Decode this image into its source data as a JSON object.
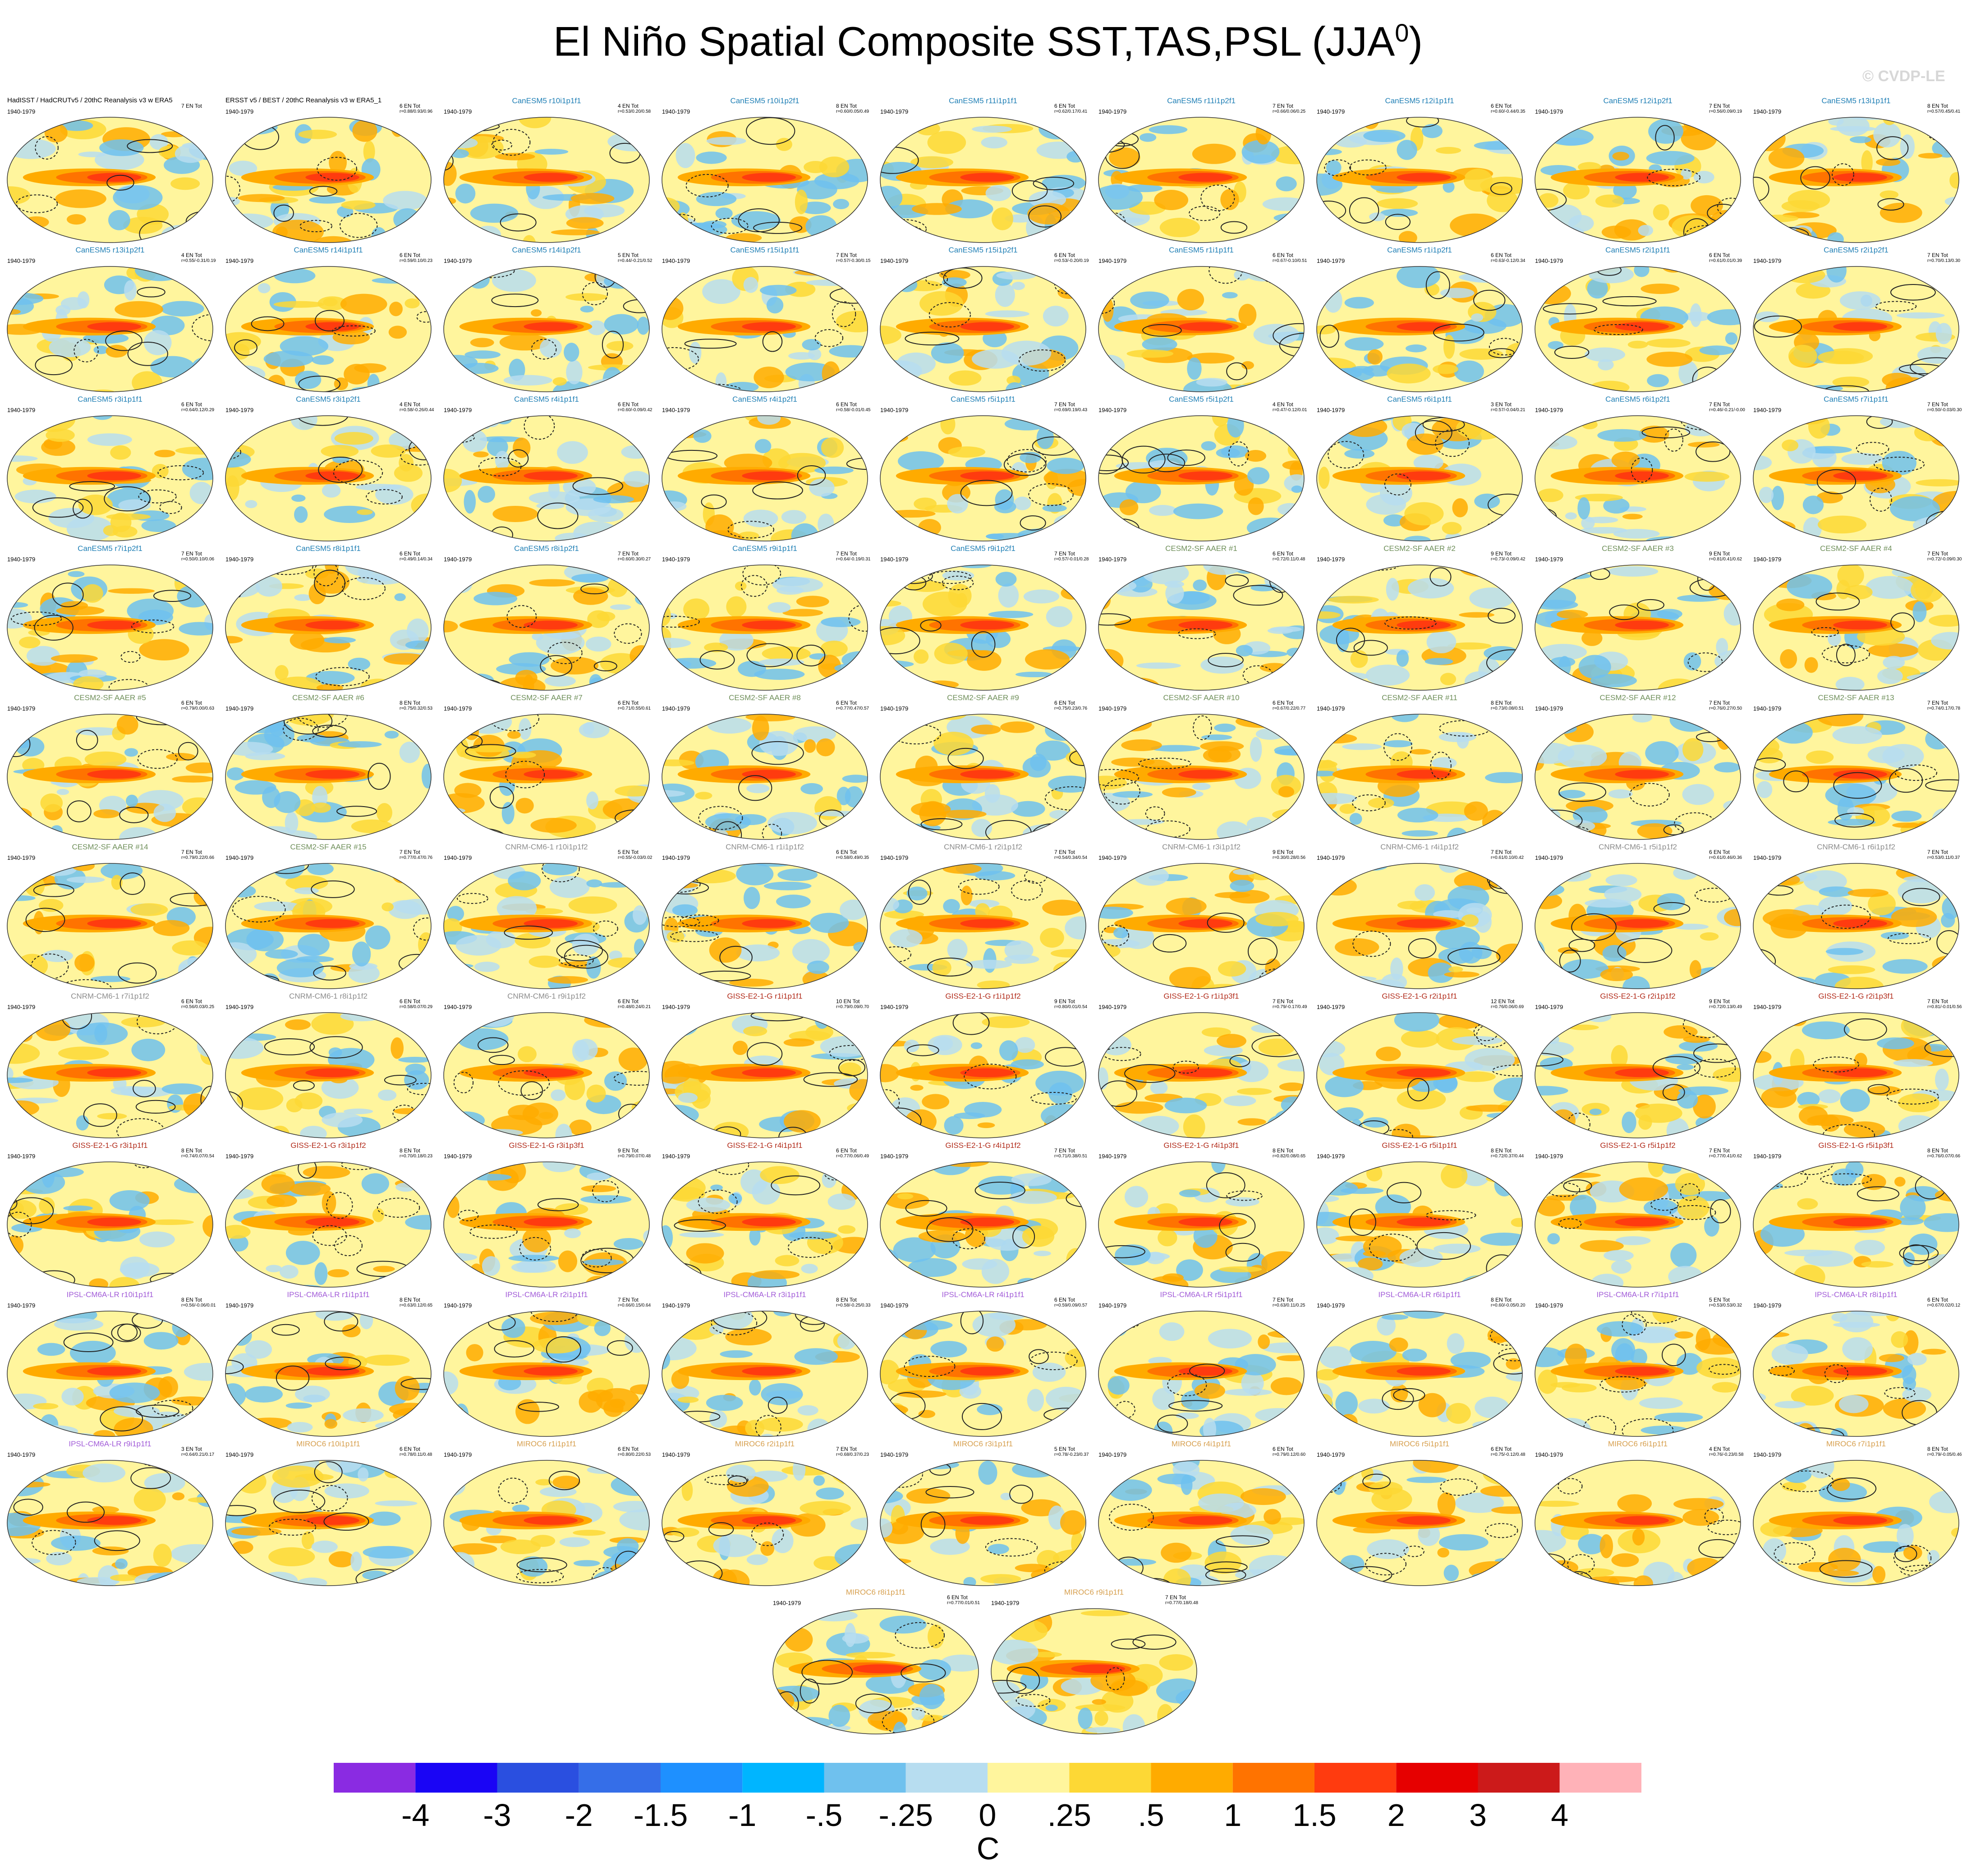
{
  "figure": {
    "title": "El Niño Spatial Composite SST,TAS,PSL (JJA",
    "title_sup": "0",
    "title_close": ")",
    "copyright": "© CVDP-LE",
    "period": "1940-1979"
  },
  "colors": {
    "CanESM5": "#1f7fb5",
    "CESM2": "#6f8f5a",
    "CNRM": "#8c8c8c",
    "GISS": "#b22c1b",
    "IPSL": "#a25cd8",
    "MIROC6": "#d7a04f",
    "Observations": "#000000"
  },
  "panels": [
    {
      "name": "HadISST / HadCRUTv5 / 20thC Reanalysis v3 w ERA5",
      "group": "Observations",
      "count": "7 EN Tot",
      "stats": "",
      "seed": 1
    },
    {
      "name": "ERSST v5 / BEST / 20thC Reanalysis v3 w ERA5_1",
      "group": "Observations",
      "count": "6 EN Tot",
      "stats": "r=0.88/0.93/0.96",
      "seed": 2
    },
    {
      "name": "CanESM5 r10i1p1f1",
      "group": "CanESM5",
      "count": "4 EN Tot",
      "stats": "r=0.53/0.20/0.58",
      "seed": 3
    },
    {
      "name": "CanESM5 r10i1p2f1",
      "group": "CanESM5",
      "count": "8 EN Tot",
      "stats": "r=0.60/0.05/0.49",
      "seed": 4
    },
    {
      "name": "CanESM5 r11i1p1f1",
      "group": "CanESM5",
      "count": "6 EN Tot",
      "stats": "r=0.62/0.17/0.41",
      "seed": 5
    },
    {
      "name": "CanESM5 r11i1p2f1",
      "group": "CanESM5",
      "count": "7 EN Tot",
      "stats": "r=0.66/0.06/0.25",
      "seed": 6
    },
    {
      "name": "CanESM5 r12i1p1f1",
      "group": "CanESM5",
      "count": "6 EN Tot",
      "stats": "r=0.60/-0.44/0.35",
      "seed": 7
    },
    {
      "name": "CanESM5 r12i1p2f1",
      "group": "CanESM5",
      "count": "7 EN Tot",
      "stats": "r=0.56/0.09/0.19",
      "seed": 8
    },
    {
      "name": "CanESM5 r13i1p1f1",
      "group": "CanESM5",
      "count": "8 EN Tot",
      "stats": "r=0.57/0.45/0.41",
      "seed": 9
    },
    {
      "name": "CanESM5 r13i1p2f1",
      "group": "CanESM5",
      "count": "4 EN Tot",
      "stats": "r=0.55/-0.31/0.19",
      "seed": 10
    },
    {
      "name": "CanESM5 r14i1p1f1",
      "group": "CanESM5",
      "count": "6 EN Tot",
      "stats": "r=0.59/0.10/0.23",
      "seed": 11
    },
    {
      "name": "CanESM5 r14i1p2f1",
      "group": "CanESM5",
      "count": "5 EN Tot",
      "stats": "r=0.44/-0.21/0.52",
      "seed": 12
    },
    {
      "name": "CanESM5 r15i1p1f1",
      "group": "CanESM5",
      "count": "7 EN Tot",
      "stats": "r=0.57/-0.30/0.15",
      "seed": 13
    },
    {
      "name": "CanESM5 r15i1p2f1",
      "group": "CanESM5",
      "count": "6 EN Tot",
      "stats": "r=0.53/-0.20/0.19",
      "seed": 14
    },
    {
      "name": "CanESM5 r1i1p1f1",
      "group": "CanESM5",
      "count": "6 EN Tot",
      "stats": "r=0.67/-0.10/0.51",
      "seed": 15
    },
    {
      "name": "CanESM5 r1i1p2f1",
      "group": "CanESM5",
      "count": "6 EN Tot",
      "stats": "r=0.63/-0.12/0.34",
      "seed": 16
    },
    {
      "name": "CanESM5 r2i1p1f1",
      "group": "CanESM5",
      "count": "6 EN Tot",
      "stats": "r=0.61/0.01/0.39",
      "seed": 17
    },
    {
      "name": "CanESM5 r2i1p2f1",
      "group": "CanESM5",
      "count": "7 EN Tot",
      "stats": "r=0.70/0.13/0.30",
      "seed": 18
    },
    {
      "name": "CanESM5 r3i1p1f1",
      "group": "CanESM5",
      "count": "6 EN Tot",
      "stats": "r=0.64/0.12/0.29",
      "seed": 19
    },
    {
      "name": "CanESM5 r3i1p2f1",
      "group": "CanESM5",
      "count": "4 EN Tot",
      "stats": "r=0.58/-0.26/0.44",
      "seed": 20
    },
    {
      "name": "CanESM5 r4i1p1f1",
      "group": "CanESM5",
      "count": "6 EN Tot",
      "stats": "r=0.60/-0.09/0.42",
      "seed": 21
    },
    {
      "name": "CanESM5 r4i1p2f1",
      "group": "CanESM5",
      "count": "6 EN Tot",
      "stats": "r=0.58/-0.01/0.45",
      "seed": 22
    },
    {
      "name": "CanESM5 r5i1p1f1",
      "group": "CanESM5",
      "count": "7 EN Tot",
      "stats": "r=0.69/0.19/0.43",
      "seed": 23
    },
    {
      "name": "CanESM5 r5i1p2f1",
      "group": "CanESM5",
      "count": "4 EN Tot",
      "stats": "r=0.47/-0.12/0.01",
      "seed": 24
    },
    {
      "name": "CanESM5 r6i1p1f1",
      "group": "CanESM5",
      "count": "3 EN Tot",
      "stats": "r=0.57/-0.04/0.21",
      "seed": 25
    },
    {
      "name": "CanESM5 r6i1p2f1",
      "group": "CanESM5",
      "count": "7 EN Tot",
      "stats": "r=0.46/-0.21/-0.00",
      "seed": 26
    },
    {
      "name": "CanESM5 r7i1p1f1",
      "group": "CanESM5",
      "count": "7 EN Tot",
      "stats": "r=0.50/-0.03/0.30",
      "seed": 27
    },
    {
      "name": "CanESM5 r7i1p2f1",
      "group": "CanESM5",
      "count": "7 EN Tot",
      "stats": "r=0.50/0.10/0.06",
      "seed": 28
    },
    {
      "name": "CanESM5 r8i1p1f1",
      "group": "CanESM5",
      "count": "6 EN Tot",
      "stats": "r=0.49/0.14/0.34",
      "seed": 29
    },
    {
      "name": "CanESM5 r8i1p2f1",
      "group": "CanESM5",
      "count": "7 EN Tot",
      "stats": "r=0.60/0.30/0.27",
      "seed": 30
    },
    {
      "name": "CanESM5 r9i1p1f1",
      "group": "CanESM5",
      "count": "7 EN Tot",
      "stats": "r=0.64/-0.19/0.31",
      "seed": 31
    },
    {
      "name": "CanESM5 r9i1p2f1",
      "group": "CanESM5",
      "count": "7 EN Tot",
      "stats": "r=0.57/-0.01/0.28",
      "seed": 32
    },
    {
      "name": "CESM2-SF AAER #1",
      "group": "CESM2",
      "count": "6 EN Tot",
      "stats": "r=0.72/0.11/0.48",
      "seed": 33
    },
    {
      "name": "CESM2-SF AAER #2",
      "group": "CESM2",
      "count": "9 EN Tot",
      "stats": "r=0.73/-0.09/0.42",
      "seed": 34
    },
    {
      "name": "CESM2-SF AAER #3",
      "group": "CESM2",
      "count": "9 EN Tot",
      "stats": "r=0.81/0.41/0.62",
      "seed": 35
    },
    {
      "name": "CESM2-SF AAER #4",
      "group": "CESM2",
      "count": "7 EN Tot",
      "stats": "r=0.72/-0.09/0.30",
      "seed": 36
    },
    {
      "name": "CESM2-SF AAER #5",
      "group": "CESM2",
      "count": "6 EN Tot",
      "stats": "r=0.79/0.00/0.63",
      "seed": 37
    },
    {
      "name": "CESM2-SF AAER #6",
      "group": "CESM2",
      "count": "8 EN Tot",
      "stats": "r=0.75/0.32/0.53",
      "seed": 38
    },
    {
      "name": "CESM2-SF AAER #7",
      "group": "CESM2",
      "count": "6 EN Tot",
      "stats": "r=0.71/0.55/0.61",
      "seed": 39
    },
    {
      "name": "CESM2-SF AAER #8",
      "group": "CESM2",
      "count": "6 EN Tot",
      "stats": "r=0.77/0.47/0.57",
      "seed": 40
    },
    {
      "name": "CESM2-SF AAER #9",
      "group": "CESM2",
      "count": "6 EN Tot",
      "stats": "r=0.75/0.23/0.76",
      "seed": 41
    },
    {
      "name": "CESM2-SF AAER #10",
      "group": "CESM2",
      "count": "6 EN Tot",
      "stats": "r=0.67/0.22/0.77",
      "seed": 42
    },
    {
      "name": "CESM2-SF AAER #11",
      "group": "CESM2",
      "count": "8 EN Tot",
      "stats": "r=0.73/0.08/0.51",
      "seed": 43
    },
    {
      "name": "CESM2-SF AAER #12",
      "group": "CESM2",
      "count": "7 EN Tot",
      "stats": "r=0.76/0.27/0.50",
      "seed": 44
    },
    {
      "name": "CESM2-SF AAER #13",
      "group": "CESM2",
      "count": "7 EN Tot",
      "stats": "r=0.74/0.17/0.78",
      "seed": 45
    },
    {
      "name": "CESM2-SF AAER #14",
      "group": "CESM2",
      "count": "7 EN Tot",
      "stats": "r=0.79/0.22/0.66",
      "seed": 46
    },
    {
      "name": "CESM2-SF AAER #15",
      "group": "CESM2",
      "count": "7 EN Tot",
      "stats": "r=0.77/0.47/0.76",
      "seed": 47
    },
    {
      "name": "CNRM-CM6-1 r10i1p1f2",
      "group": "CNRM",
      "count": "5 EN Tot",
      "stats": "r=0.55/-0.03/0.02",
      "seed": 48
    },
    {
      "name": "CNRM-CM6-1 r1i1p1f2",
      "group": "CNRM",
      "count": "6 EN Tot",
      "stats": "r=0.58/0.49/0.35",
      "seed": 49
    },
    {
      "name": "CNRM-CM6-1 r2i1p1f2",
      "group": "CNRM",
      "count": "7 EN Tot",
      "stats": "r=0.54/0.34/0.54",
      "seed": 50
    },
    {
      "name": "CNRM-CM6-1 r3i1p1f2",
      "group": "CNRM",
      "count": "9 EN Tot",
      "stats": "r=0.30/0.28/0.56",
      "seed": 51
    },
    {
      "name": "CNRM-CM6-1 r4i1p1f2",
      "group": "CNRM",
      "count": "7 EN Tot",
      "stats": "r=0.61/0.10/0.42",
      "seed": 52
    },
    {
      "name": "CNRM-CM6-1 r5i1p1f2",
      "group": "CNRM",
      "count": "6 EN Tot",
      "stats": "r=0.61/0.46/0.36",
      "seed": 53
    },
    {
      "name": "CNRM-CM6-1 r6i1p1f2",
      "group": "CNRM",
      "count": "7 EN Tot",
      "stats": "r=0.53/0.11/0.37",
      "seed": 54
    },
    {
      "name": "CNRM-CM6-1 r7i1p1f2",
      "group": "CNRM",
      "count": "6 EN Tot",
      "stats": "r=0.56/0.03/0.25",
      "seed": 55
    },
    {
      "name": "CNRM-CM6-1 r8i1p1f2",
      "group": "CNRM",
      "count": "6 EN Tot",
      "stats": "r=0.58/0.07/0.29",
      "seed": 56
    },
    {
      "name": "CNRM-CM6-1 r9i1p1f2",
      "group": "CNRM",
      "count": "6 EN Tot",
      "stats": "r=0.48/0.24/0.21",
      "seed": 57
    },
    {
      "name": "GISS-E2-1-G r1i1p1f1",
      "group": "GISS",
      "count": "10 EN Tot",
      "stats": "r=0.79/0.09/0.70",
      "seed": 58
    },
    {
      "name": "GISS-E2-1-G r1i1p1f2",
      "group": "GISS",
      "count": "9 EN Tot",
      "stats": "r=0.80/0.01/0.54",
      "seed": 59
    },
    {
      "name": "GISS-E2-1-G r1i1p3f1",
      "group": "GISS",
      "count": "7 EN Tot",
      "stats": "r=0.79/-0.17/0.49",
      "seed": 60
    },
    {
      "name": "GISS-E2-1-G r2i1p1f1",
      "group": "GISS",
      "count": "12 EN Tot",
      "stats": "r=0.76/0.06/0.69",
      "seed": 61
    },
    {
      "name": "GISS-E2-1-G r2i1p1f2",
      "group": "GISS",
      "count": "9 EN Tot",
      "stats": "r=0.72/0.13/0.49",
      "seed": 62
    },
    {
      "name": "GISS-E2-1-G r2i1p3f1",
      "group": "GISS",
      "count": "7 EN Tot",
      "stats": "r=0.81/-0.01/0.56",
      "seed": 63
    },
    {
      "name": "GISS-E2-1-G r3i1p1f1",
      "group": "GISS",
      "count": "8 EN Tot",
      "stats": "r=0.74/0.07/0.54",
      "seed": 64
    },
    {
      "name": "GISS-E2-1-G r3i1p1f2",
      "group": "GISS",
      "count": "8 EN Tot",
      "stats": "r=0.70/0.18/0.23",
      "seed": 65
    },
    {
      "name": "GISS-E2-1-G r3i1p3f1",
      "group": "GISS",
      "count": "9 EN Tot",
      "stats": "r=0.79/0.07/0.48",
      "seed": 66
    },
    {
      "name": "GISS-E2-1-G r4i1p1f1",
      "group": "GISS",
      "count": "6 EN Tot",
      "stats": "r=0.77/0.06/0.49",
      "seed": 67
    },
    {
      "name": "GISS-E2-1-G r4i1p1f2",
      "group": "GISS",
      "count": "7 EN Tot",
      "stats": "r=0.71/0.38/0.51",
      "seed": 68
    },
    {
      "name": "GISS-E2-1-G r4i1p3f1",
      "group": "GISS",
      "count": "8 EN Tot",
      "stats": "r=0.82/0.08/0.65",
      "seed": 69
    },
    {
      "name": "GISS-E2-1-G r5i1p1f1",
      "group": "GISS",
      "count": "8 EN Tot",
      "stats": "r=0.72/0.37/0.44",
      "seed": 70
    },
    {
      "name": "GISS-E2-1-G r5i1p1f2",
      "group": "GISS",
      "count": "7 EN Tot",
      "stats": "r=0.77/0.41/0.62",
      "seed": 71
    },
    {
      "name": "GISS-E2-1-G r5i1p3f1",
      "group": "GISS",
      "count": "8 EN Tot",
      "stats": "r=0.76/0.07/0.66",
      "seed": 72
    },
    {
      "name": "IPSL-CM6A-LR r10i1p1f1",
      "group": "IPSL",
      "count": "8 EN Tot",
      "stats": "r=0.56/-0.06/0.01",
      "seed": 73
    },
    {
      "name": "IPSL-CM6A-LR r1i1p1f1",
      "group": "IPSL",
      "count": "8 EN Tot",
      "stats": "r=0.63/0.12/0.65",
      "seed": 74
    },
    {
      "name": "IPSL-CM6A-LR r2i1p1f1",
      "group": "IPSL",
      "count": "7 EN Tot",
      "stats": "r=0.66/0.15/0.64",
      "seed": 75
    },
    {
      "name": "IPSL-CM6A-LR r3i1p1f1",
      "group": "IPSL",
      "count": "8 EN Tot",
      "stats": "r=0.58/-0.25/0.33",
      "seed": 76
    },
    {
      "name": "IPSL-CM6A-LR r4i1p1f1",
      "group": "IPSL",
      "count": "6 EN Tot",
      "stats": "r=0.59/0.09/0.57",
      "seed": 77
    },
    {
      "name": "IPSL-CM6A-LR r5i1p1f1",
      "group": "IPSL",
      "count": "7 EN Tot",
      "stats": "r=0.63/0.11/0.25",
      "seed": 78
    },
    {
      "name": "IPSL-CM6A-LR r6i1p1f1",
      "group": "IPSL",
      "count": "8 EN Tot",
      "stats": "r=0.60/-0.05/0.20",
      "seed": 79
    },
    {
      "name": "IPSL-CM6A-LR r7i1p1f1",
      "group": "IPSL",
      "count": "5 EN Tot",
      "stats": "r=0.53/0.53/0.32",
      "seed": 80
    },
    {
      "name": "IPSL-CM6A-LR r8i1p1f1",
      "group": "IPSL",
      "count": "6 EN Tot",
      "stats": "r=0.67/0.02/0.12",
      "seed": 81
    },
    {
      "name": "IPSL-CM6A-LR r9i1p1f1",
      "group": "IPSL",
      "count": "3 EN Tot",
      "stats": "r=0.64/0.21/0.17",
      "seed": 82
    },
    {
      "name": "MIROC6 r10i1p1f1",
      "group": "MIROC6",
      "count": "6 EN Tot",
      "stats": "r=0.78/0.11/0.48",
      "seed": 83
    },
    {
      "name": "MIROC6 r1i1p1f1",
      "group": "MIROC6",
      "count": "6 EN Tot",
      "stats": "r=0.80/0.22/0.53",
      "seed": 84
    },
    {
      "name": "MIROC6 r2i1p1f1",
      "group": "MIROC6",
      "count": "7 EN Tot",
      "stats": "r=0.68/0.37/0.23",
      "seed": 85
    },
    {
      "name": "MIROC6 r3i1p1f1",
      "group": "MIROC6",
      "count": "5 EN Tot",
      "stats": "r=0.78/-0.23/0.37",
      "seed": 86
    },
    {
      "name": "MIROC6 r4i1p1f1",
      "group": "MIROC6",
      "count": "6 EN Tot",
      "stats": "r=0.79/0.12/0.60",
      "seed": 87
    },
    {
      "name": "MIROC6 r5i1p1f1",
      "group": "MIROC6",
      "count": "6 EN Tot",
      "stats": "r=0.75/-0.12/0.48",
      "seed": 88
    },
    {
      "name": "MIROC6 r6i1p1f1",
      "group": "MIROC6",
      "count": "4 EN Tot",
      "stats": "r=0.76/-0.23/0.58",
      "seed": 89
    },
    {
      "name": "MIROC6 r7i1p1f1",
      "group": "MIROC6",
      "count": "8 EN Tot",
      "stats": "r=0.79/-0.05/0.46",
      "seed": 90
    },
    {
      "name": "MIROC6 r8i1p1f1",
      "group": "MIROC6",
      "count": "6 EN Tot",
      "stats": "r=0.77/0.01/0.51",
      "seed": 91
    },
    {
      "name": "MIROC6 r9i1p1f1",
      "group": "MIROC6",
      "count": "7 EN Tot",
      "stats": "r=0.77/0.18/0.48",
      "seed": 92
    }
  ],
  "colorbar": {
    "colors": [
      "#8a2be2",
      "#1a05f5",
      "#2a4fe0",
      "#356ee8",
      "#1e90ff",
      "#00b5ff",
      "#6fc1ee",
      "#b7ddf0",
      "#fff59d",
      "#fdd835",
      "#ffab00",
      "#ff7300",
      "#ff3b0f",
      "#e60000",
      "#cc1a1a",
      "#ffb2b8"
    ],
    "labels": [
      "-4",
      "-3",
      "-2",
      "-1.5",
      "-1",
      "-.5",
      "-.25",
      "0",
      ".25",
      ".5",
      "1",
      "1.5",
      "2",
      "3",
      "4"
    ],
    "units": "C"
  },
  "chart_data": {
    "type": "heatmap",
    "title": "El Niño Spatial Composite SST,TAS,PSL (JJA0)",
    "panel_count": 92,
    "period": "1940-1979",
    "colorbar_levels": [
      -4,
      -3,
      -2,
      -1.5,
      -1,
      -0.5,
      -0.25,
      0,
      0.25,
      0.5,
      1,
      1.5,
      2,
      3,
      4
    ],
    "units": "C",
    "projection": "Robinson"
  }
}
